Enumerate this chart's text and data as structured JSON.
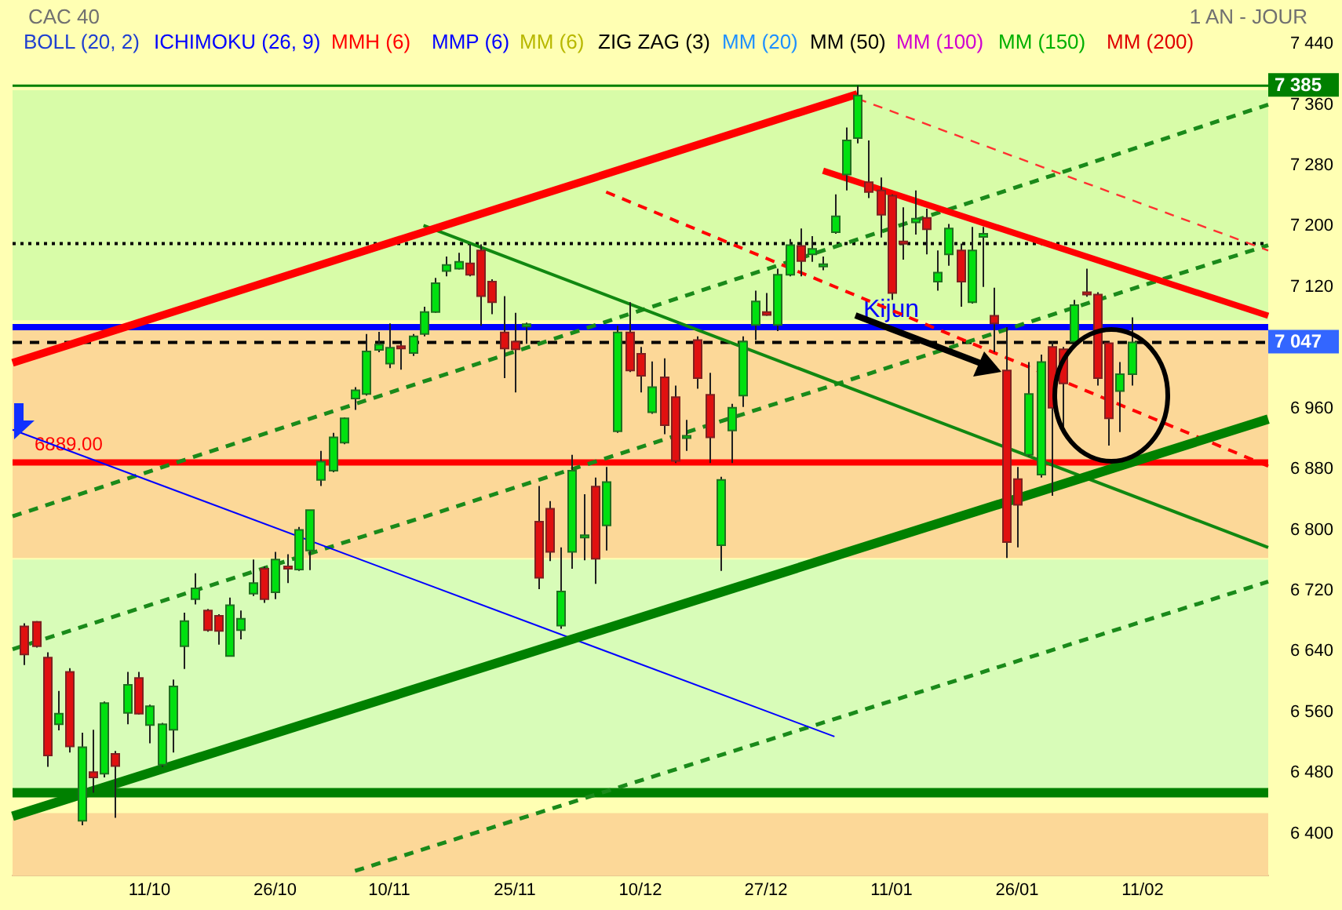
{
  "chart_data": {
    "type": "candlestick",
    "title": "CAC 40",
    "subtitle": "1 AN - JOUR",
    "annotations": [
      "BOLL (20, 2)",
      "ICHIMOKU (26, 9)",
      "MMH (6)",
      "MMP (6)",
      "MM (6)",
      "ZIG ZAG (3)",
      "MM (20)",
      "MM (50)",
      "MM (100)",
      "MM (150)",
      "MM (200)"
    ],
    "categories": [
      null,
      null,
      null,
      null,
      null,
      null,
      null,
      null,
      null,
      null,
      null,
      null,
      "11/10",
      null,
      null,
      null,
      null,
      null,
      null,
      null,
      null,
      null,
      null,
      "26/10",
      null,
      null,
      null,
      null,
      null,
      null,
      null,
      null,
      null,
      "10/11",
      null,
      null,
      null,
      null,
      null,
      null,
      null,
      null,
      null,
      null,
      "25/11",
      null,
      null,
      null,
      null,
      null,
      null,
      null,
      null,
      null,
      null,
      "10/12",
      null,
      null,
      null,
      null,
      null,
      null,
      null,
      null,
      null,
      null,
      "27/12",
      null,
      null,
      null,
      null,
      null,
      null,
      null,
      null,
      null,
      null,
      "11/01",
      null,
      null,
      null,
      null,
      null,
      null,
      null,
      null,
      null,
      null,
      "26/01",
      null,
      null,
      null,
      null,
      null,
      null,
      null,
      null,
      null,
      null,
      "11/02",
      null,
      null,
      null,
      null,
      null,
      null,
      null,
      null,
      null,
      null,
      null
    ],
    "ohlc": [
      null,
      [
        6673,
        6677,
        6622,
        6636
      ],
      [
        6679,
        6680,
        6645,
        6647
      ],
      [
        6632,
        6639,
        6488,
        6503
      ],
      [
        6544,
        6588,
        6536,
        6558
      ],
      [
        6613,
        6618,
        6507,
        6515
      ],
      [
        6417,
        6533,
        6411,
        6514
      ],
      [
        6481,
        6537,
        6454,
        6474
      ],
      [
        6479,
        6574,
        6474,
        6572
      ],
      [
        6505,
        6509,
        6421,
        6489
      ],
      [
        6559,
        6613,
        6544,
        6596
      ],
      [
        6605,
        6613,
        6557,
        6558
      ],
      [
        6543,
        6570,
        6519,
        6568
      ],
      [
        6491,
        6546,
        6488,
        6544
      ],
      [
        6537,
        6603,
        6507,
        6594
      ],
      [
        6647,
        6691,
        6617,
        6680
      ],
      [
        6709,
        6743,
        6702,
        6723
      ],
      [
        6694,
        6696,
        6666,
        6668
      ],
      [
        6687,
        6689,
        6649,
        6667
      ],
      [
        6634,
        6711,
        6634,
        6701
      ],
      [
        6668,
        6694,
        6656,
        6683
      ],
      [
        6716,
        6761,
        6713,
        6730
      ],
      [
        6749,
        6752,
        6704,
        6709
      ],
      [
        6718,
        6771,
        6709,
        6761
      ],
      [
        6752,
        6768,
        6730,
        6749
      ],
      [
        6748,
        6804,
        6746,
        6800
      ],
      [
        6773,
        6826,
        6747,
        6826
      ],
      [
        6866,
        6904,
        6858,
        6890
      ],
      [
        6878,
        6928,
        6876,
        6922
      ],
      [
        6915,
        6948,
        6913,
        6947
      ],
      [
        6973,
        6988,
        6958,
        6984
      ],
      [
        6979,
        7058,
        6977,
        7035
      ],
      [
        7037,
        7061,
        7034,
        7044
      ],
      [
        7019,
        7072,
        7013,
        7040
      ],
      [
        7042,
        7046,
        7011,
        7039
      ],
      [
        7033,
        7058,
        7029,
        7055
      ],
      [
        7058,
        7094,
        7055,
        7087
      ],
      [
        7087,
        7132,
        7086,
        7125
      ],
      [
        7141,
        7160,
        7134,
        7149
      ],
      [
        7144,
        7165,
        7143,
        7153
      ],
      [
        7151,
        7176,
        7134,
        7136
      ],
      [
        7168,
        7176,
        7069,
        7108
      ],
      [
        7127,
        7130,
        7084,
        7100
      ],
      [
        7060,
        7108,
        7000,
        7039
      ],
      [
        7048,
        7086,
        6981,
        7038
      ],
      [
        7069,
        7073,
        7045,
        7071
      ],
      [
        6811,
        6858,
        6722,
        6737
      ],
      [
        6828,
        6838,
        6759,
        6771
      ],
      [
        6674,
        6777,
        6670,
        6719
      ],
      [
        6771,
        6899,
        6749,
        6878
      ],
      [
        6790,
        6847,
        6760,
        6793
      ],
      [
        6857,
        6869,
        6729,
        6762
      ],
      [
        6806,
        6883,
        6773,
        6863
      ],
      [
        6930,
        7069,
        6928,
        7060
      ],
      [
        7060,
        7100,
        7008,
        7010
      ],
      [
        7032,
        7041,
        6981,
        7003
      ],
      [
        6955,
        7022,
        6953,
        6988
      ],
      [
        7001,
        7026,
        6926,
        6938
      ],
      [
        6975,
        6990,
        6888,
        6891
      ],
      [
        6921,
        6945,
        6904,
        6924
      ],
      [
        7050,
        7055,
        6986,
        7000
      ],
      [
        6978,
        7007,
        6888,
        6922
      ],
      [
        6780,
        6870,
        6746,
        6866
      ],
      [
        6931,
        6966,
        6888,
        6961
      ],
      [
        6977,
        7055,
        6962,
        7048
      ],
      [
        7070,
        7115,
        7050,
        7101
      ],
      [
        7087,
        7112,
        7082,
        7083
      ],
      [
        7070,
        7144,
        7062,
        7136
      ],
      [
        7136,
        7183,
        7134,
        7175
      ],
      [
        7174,
        7197,
        7134,
        7154
      ],
      [
        7163,
        7187,
        7153,
        7170
      ],
      [
        7149,
        7160,
        7142,
        7150
      ],
      [
        7192,
        7242,
        7190,
        7213
      ],
      [
        7268,
        7330,
        7247,
        7313
      ],
      [
        7316,
        7385,
        7309,
        7372
      ],
      [
        7258,
        7313,
        7237,
        7245
      ],
      [
        7247,
        7264,
        7185,
        7215
      ],
      [
        7240,
        7242,
        7103,
        7112
      ],
      [
        7180,
        7225,
        7156,
        7177
      ],
      [
        7205,
        7247,
        7189,
        7210
      ],
      [
        7211,
        7223,
        7163,
        7196
      ],
      [
        7127,
        7168,
        7115,
        7139
      ],
      [
        7163,
        7203,
        7148,
        7197
      ],
      [
        7168,
        7177,
        7094,
        7127
      ],
      [
        7100,
        7199,
        7098,
        7168
      ],
      [
        7186,
        7199,
        7120,
        7190
      ],
      [
        7082,
        7119,
        7034,
        7072
      ],
      [
        7010,
        7067,
        6763,
        6784
      ],
      [
        6867,
        6883,
        6777,
        6833
      ],
      [
        6899,
        7021,
        6897,
        6979
      ],
      [
        6873,
        7031,
        6869,
        7021
      ],
      [
        7041,
        7048,
        6845,
        6961
      ],
      [
        7038,
        7041,
        6935,
        6993
      ],
      [
        7048,
        7103,
        7046,
        7096
      ],
      [
        7113,
        7144,
        7107,
        7111
      ],
      [
        7110,
        7113,
        6990,
        7000
      ],
      [
        7046,
        7048,
        6911,
        6947
      ],
      [
        6983,
        7021,
        6929,
        7005
      ],
      [
        7005,
        7080,
        6990,
        7047
      ],
      null,
      null,
      null,
      null,
      null,
      null,
      null,
      null,
      null,
      null,
      null,
      null
    ],
    "series": [
      {
        "type": "line",
        "color": "#ff0000",
        "values": [
          7020,
          null,
          null,
          null,
          null,
          null,
          null,
          null,
          null,
          null,
          null,
          null,
          null,
          null,
          null,
          null,
          null,
          null,
          null,
          null,
          null,
          null,
          null,
          null,
          null,
          null,
          null,
          null,
          null,
          null,
          null,
          null,
          null,
          null,
          null,
          null,
          null,
          null,
          null,
          null,
          null,
          null,
          null,
          null,
          null,
          null,
          null,
          null,
          null,
          null,
          null,
          null,
          null,
          null,
          null,
          null,
          null,
          null,
          null,
          null,
          null,
          null,
          null,
          null,
          null,
          null,
          null,
          null,
          null,
          null,
          null,
          null,
          null,
          null,
          7374,
          null,
          null,
          null,
          null,
          null,
          null,
          null,
          null,
          null,
          null,
          null,
          null,
          null,
          null,
          null,
          null,
          null,
          null,
          null,
          null,
          null,
          null,
          null,
          null,
          null,
          null,
          null,
          null,
          null,
          null,
          null,
          null,
          null,
          null,
          null,
          null
        ]
      },
      {
        "type": "line",
        "color": "#ff0000",
        "values": [
          null,
          null,
          null,
          null,
          null,
          null,
          null,
          null,
          null,
          null,
          null,
          null,
          null,
          null,
          null,
          null,
          null,
          null,
          null,
          null,
          null,
          null,
          null,
          null,
          null,
          null,
          null,
          null,
          null,
          null,
          null,
          null,
          null,
          null,
          null,
          null,
          null,
          null,
          null,
          null,
          null,
          null,
          null,
          null,
          null,
          null,
          null,
          null,
          null,
          null,
          null,
          null,
          null,
          null,
          null,
          null,
          null,
          null,
          null,
          null,
          null,
          null,
          null,
          null,
          null,
          null,
          null,
          null,
          null,
          null,
          null,
          7273,
          null,
          null,
          null,
          null,
          null,
          null,
          null,
          null,
          null,
          null,
          null,
          null,
          null,
          null,
          null,
          null,
          null,
          null,
          null,
          null,
          null,
          null,
          null,
          null,
          null,
          null,
          null,
          null,
          null,
          null,
          null,
          null,
          null,
          null,
          null,
          null,
          null,
          null,
          7082
        ]
      },
      {
        "type": "line",
        "color": "#008000",
        "values": [
          6423,
          null,
          null,
          null,
          null,
          null,
          null,
          null,
          null,
          null,
          null,
          null,
          null,
          null,
          null,
          null,
          null,
          null,
          null,
          null,
          null,
          null,
          null,
          null,
          null,
          null,
          null,
          null,
          null,
          null,
          null,
          null,
          null,
          null,
          null,
          null,
          null,
          null,
          null,
          null,
          null,
          null,
          null,
          null,
          null,
          null,
          null,
          null,
          null,
          null,
          null,
          null,
          null,
          null,
          null,
          null,
          null,
          null,
          null,
          null,
          null,
          null,
          null,
          null,
          null,
          null,
          null,
          null,
          null,
          null,
          null,
          null,
          null,
          null,
          null,
          null,
          null,
          null,
          null,
          null,
          null,
          null,
          null,
          null,
          null,
          null,
          null,
          null,
          null,
          null,
          null,
          null,
          null,
          null,
          null,
          null,
          null,
          null,
          null,
          null,
          null,
          null,
          null,
          null,
          null,
          null,
          null,
          null,
          null,
          null,
          6946
        ]
      },
      {
        "type": "line",
        "color": "#118811",
        "values": [
          null,
          null,
          null,
          null,
          null,
          null,
          null,
          null,
          null,
          null,
          null,
          null,
          null,
          null,
          null,
          null,
          null,
          null,
          null,
          null,
          null,
          null,
          null,
          null,
          null,
          null,
          null,
          null,
          null,
          null,
          null,
          null,
          null,
          null,
          null,
          null,
          7201,
          null,
          null,
          null,
          null,
          null,
          null,
          null,
          null,
          null,
          null,
          null,
          null,
          null,
          null,
          null,
          null,
          null,
          null,
          null,
          null,
          null,
          null,
          null,
          null,
          null,
          null,
          null,
          null,
          null,
          null,
          null,
          null,
          null,
          null,
          null,
          null,
          null,
          null,
          null,
          null,
          null,
          null,
          null,
          null,
          null,
          null,
          null,
          null,
          null,
          null,
          null,
          null,
          null,
          null,
          null,
          null,
          null,
          null,
          null,
          null,
          null,
          null,
          null,
          null,
          null,
          null,
          null,
          null,
          null,
          null,
          null,
          null,
          null,
          6777
        ]
      },
      {
        "type": "line",
        "color": "#0000ff",
        "values": [
          6932,
          null,
          null,
          null,
          null,
          null,
          null,
          null,
          null,
          null,
          null,
          null,
          null,
          null,
          null,
          null,
          null,
          null,
          null,
          null,
          null,
          null,
          null,
          null,
          null,
          null,
          null,
          null,
          null,
          null,
          null,
          null,
          null,
          null,
          null,
          null,
          null,
          null,
          null,
          null,
          null,
          null,
          null,
          null,
          null,
          null,
          null,
          null,
          null,
          null,
          null,
          null,
          null,
          null,
          null,
          null,
          null,
          null,
          null,
          null,
          null,
          null,
          null,
          null,
          null,
          null,
          null,
          null,
          null,
          null,
          null,
          null,
          6528,
          null,
          null,
          null,
          null,
          null,
          null,
          null,
          null,
          null,
          null,
          null,
          null,
          null,
          null,
          null,
          null,
          null,
          null,
          null,
          null,
          null,
          null,
          null,
          null,
          null,
          null,
          null,
          null,
          null,
          null,
          null,
          null,
          null,
          null,
          null,
          null,
          null,
          null
        ]
      },
      {
        "type": "line",
        "color": "#ff0000",
        "line_style": "dashed",
        "values": [
          null,
          null,
          null,
          null,
          null,
          null,
          null,
          null,
          null,
          null,
          null,
          null,
          null,
          null,
          null,
          null,
          null,
          null,
          null,
          null,
          null,
          null,
          null,
          null,
          null,
          null,
          null,
          null,
          null,
          null,
          null,
          null,
          null,
          null,
          null,
          null,
          null,
          null,
          null,
          null,
          null,
          null,
          null,
          null,
          null,
          null,
          null,
          null,
          null,
          null,
          null,
          null,
          7245,
          null,
          null,
          null,
          null,
          null,
          null,
          null,
          null,
          null,
          null,
          null,
          null,
          null,
          null,
          null,
          null,
          null,
          null,
          null,
          null,
          null,
          null,
          null,
          null,
          null,
          null,
          null,
          null,
          null,
          null,
          null,
          null,
          null,
          null,
          null,
          null,
          null,
          null,
          null,
          null,
          null,
          null,
          null,
          null,
          null,
          null,
          null,
          null,
          null,
          null,
          null,
          null,
          null,
          null,
          null,
          null,
          null,
          6884
        ]
      },
      {
        "type": "line",
        "color": "#ff3030",
        "line_style": "dashed",
        "values": [
          null,
          null,
          null,
          null,
          null,
          null,
          null,
          null,
          null,
          null,
          null,
          null,
          null,
          null,
          null,
          null,
          null,
          null,
          null,
          null,
          null,
          null,
          null,
          null,
          null,
          null,
          null,
          null,
          null,
          null,
          null,
          null,
          null,
          null,
          null,
          null,
          null,
          null,
          null,
          null,
          null,
          null,
          null,
          null,
          null,
          null,
          null,
          null,
          null,
          null,
          null,
          null,
          null,
          null,
          null,
          null,
          null,
          null,
          null,
          null,
          null,
          null,
          null,
          null,
          null,
          null,
          null,
          null,
          null,
          null,
          null,
          null,
          null,
          null,
          7368,
          null,
          null,
          null,
          null,
          null,
          null,
          null,
          null,
          null,
          null,
          null,
          null,
          null,
          null,
          null,
          null,
          null,
          null,
          null,
          null,
          null,
          null,
          null,
          null,
          null,
          null,
          null,
          null,
          null,
          null,
          null,
          null,
          null,
          null,
          null,
          7168
        ]
      },
      {
        "type": "line",
        "color": "#1a8a1a",
        "line_style": "dashed",
        "values": [
          6818,
          null,
          null,
          null,
          null,
          null,
          null,
          null,
          null,
          null,
          null,
          null,
          null,
          null,
          null,
          null,
          null,
          null,
          null,
          null,
          null,
          null,
          null,
          null,
          null,
          null,
          null,
          null,
          null,
          null,
          null,
          null,
          null,
          null,
          null,
          null,
          null,
          null,
          null,
          null,
          null,
          null,
          null,
          null,
          null,
          null,
          null,
          null,
          null,
          null,
          null,
          null,
          null,
          null,
          null,
          null,
          null,
          null,
          null,
          null,
          null,
          null,
          null,
          null,
          null,
          null,
          null,
          null,
          null,
          null,
          null,
          null,
          null,
          null,
          null,
          null,
          null,
          null,
          null,
          null,
          null,
          null,
          null,
          null,
          null,
          null,
          null,
          null,
          null,
          null,
          null,
          null,
          null,
          null,
          null,
          null,
          null,
          null,
          null,
          null,
          null,
          null,
          null,
          null,
          null,
          null,
          null,
          null,
          null,
          null,
          7360
        ]
      },
      {
        "type": "line",
        "color": "#1a8a1a",
        "line_style": "dashed",
        "values": [
          6643,
          null,
          null,
          null,
          null,
          null,
          null,
          null,
          null,
          null,
          null,
          null,
          null,
          null,
          null,
          null,
          null,
          null,
          null,
          null,
          null,
          null,
          null,
          null,
          null,
          null,
          null,
          null,
          null,
          null,
          null,
          null,
          null,
          null,
          null,
          null,
          null,
          null,
          null,
          null,
          null,
          null,
          null,
          null,
          null,
          null,
          null,
          null,
          null,
          null,
          null,
          null,
          null,
          null,
          null,
          null,
          null,
          null,
          null,
          null,
          null,
          null,
          null,
          null,
          null,
          null,
          null,
          null,
          null,
          null,
          null,
          null,
          null,
          null,
          null,
          null,
          null,
          null,
          null,
          null,
          null,
          null,
          null,
          null,
          null,
          null,
          null,
          null,
          null,
          null,
          null,
          null,
          null,
          null,
          null,
          null,
          null,
          null,
          null,
          null,
          null,
          null,
          null,
          null,
          null,
          null,
          null,
          null,
          null,
          null,
          7175
        ]
      },
      {
        "type": "line",
        "color": "#1a8a1a",
        "line_style": "dashed",
        "values": [
          null,
          null,
          null,
          null,
          null,
          null,
          null,
          null,
          null,
          null,
          null,
          null,
          null,
          null,
          null,
          null,
          null,
          null,
          null,
          null,
          null,
          null,
          null,
          null,
          null,
          null,
          null,
          null,
          null,
          null,
          6351,
          null,
          null,
          null,
          null,
          null,
          null,
          null,
          null,
          null,
          null,
          null,
          null,
          null,
          null,
          null,
          null,
          null,
          null,
          null,
          null,
          null,
          null,
          null,
          null,
          null,
          null,
          null,
          null,
          null,
          null,
          null,
          null,
          null,
          null,
          null,
          null,
          null,
          null,
          null,
          null,
          null,
          null,
          null,
          null,
          null,
          null,
          null,
          null,
          null,
          null,
          null,
          null,
          null,
          null,
          null,
          null,
          null,
          null,
          null,
          null,
          null,
          null,
          null,
          null,
          null,
          null,
          null,
          null,
          null,
          null,
          null,
          null,
          null,
          null,
          null,
          null,
          null,
          null,
          null,
          6732
        ]
      }
    ],
    "ref_lines": [
      {
        "axis": "y",
        "value": 6889,
        "label": "6889.00",
        "color": "#ff0000"
      },
      {
        "axis": "y",
        "value": 7067,
        "label": "Kijun",
        "color": "#0000ff"
      },
      {
        "axis": "y",
        "value": 7385,
        "label": "7 385",
        "color": "#008000"
      },
      {
        "axis": "y",
        "value": 7047,
        "label": "7 047",
        "color": "#000000",
        "line_style": "dashed"
      },
      {
        "axis": "y",
        "value": 6454,
        "color": "#008000"
      },
      {
        "axis": "y",
        "value": 7177,
        "color": "#000000",
        "line_style": "dotted"
      }
    ],
    "bands": [
      {
        "axis": "y",
        "from": 7076,
        "to": 7379,
        "color": "#d8fca8"
      },
      {
        "axis": "y",
        "from": 6763,
        "to": 7065,
        "color": "#fcd898"
      },
      {
        "axis": "y",
        "from": 6456,
        "to": 6761,
        "color": "#d8fcb8"
      },
      {
        "axis": "y",
        "from": 6345,
        "to": 6427,
        "color": "#fcd898"
      }
    ],
    "ylim": [
      6345,
      7440
    ],
    "yticks": [
      {
        "value": 6400,
        "label": "6 400"
      },
      {
        "value": 6480,
        "label": "6 480"
      },
      {
        "value": 6560,
        "label": "6 560"
      },
      {
        "value": 6640,
        "label": "6 640"
      },
      {
        "value": 6720,
        "label": "6 720"
      },
      {
        "value": 6800,
        "label": "6 800"
      },
      {
        "value": 6880,
        "label": "6 880"
      },
      {
        "value": 6960,
        "label": "6 960"
      },
      {
        "value": 7120,
        "label": "7 120"
      },
      {
        "value": 7200,
        "label": "7 200"
      },
      {
        "value": 7280,
        "label": "7 280"
      },
      {
        "value": 7360,
        "label": "7 360"
      },
      {
        "value": 7440,
        "label": "7 440"
      }
    ],
    "legend": false
  }
}
